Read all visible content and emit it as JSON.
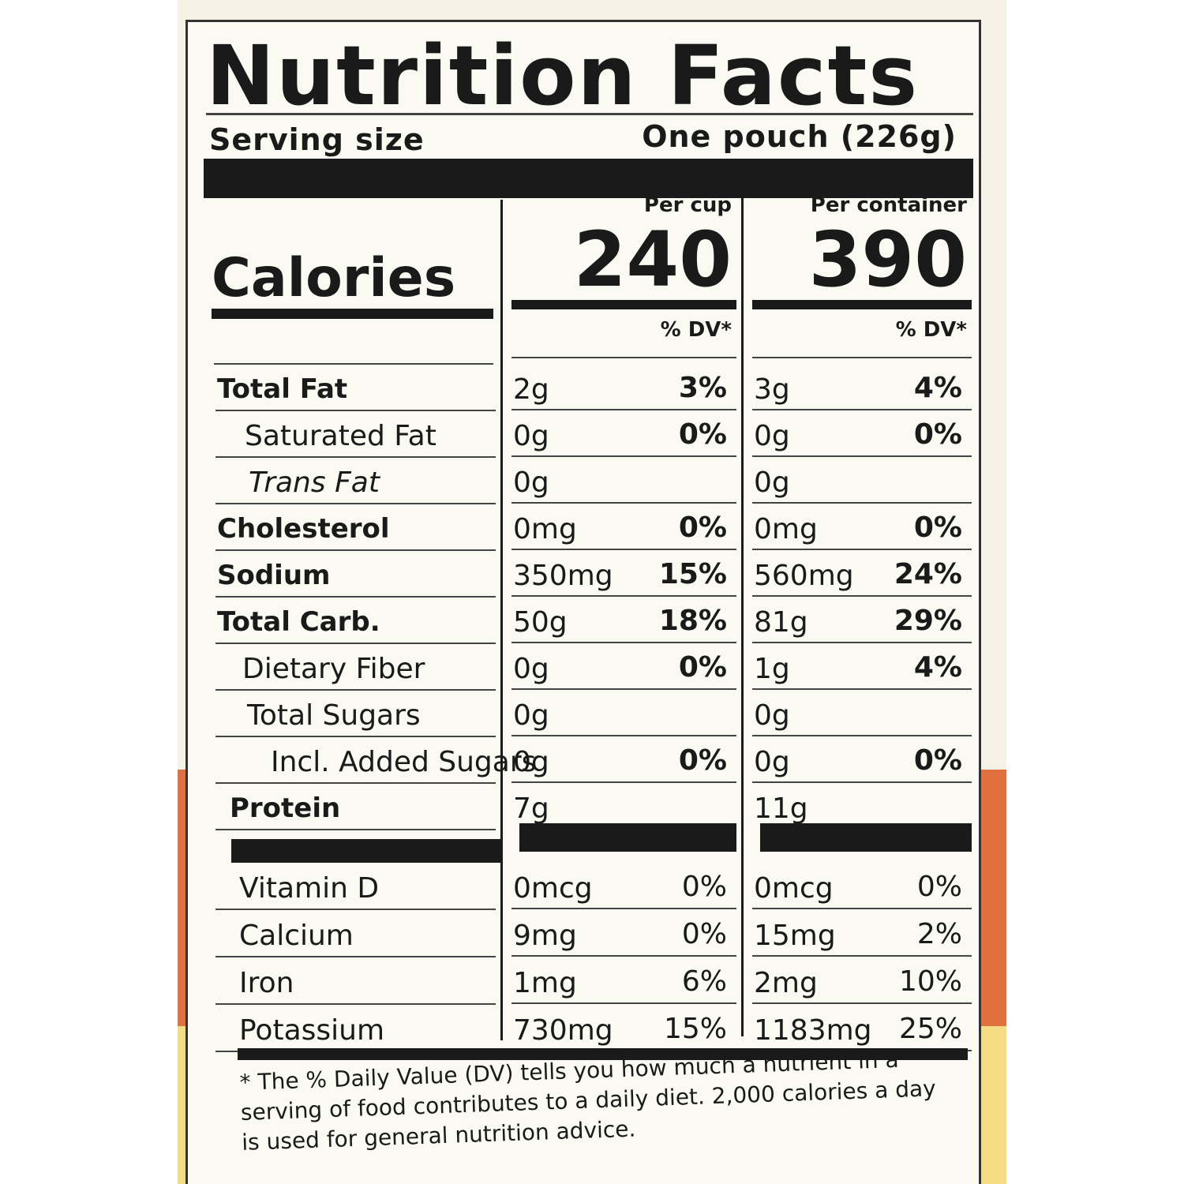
{
  "header": {
    "title": "Nutrition Facts",
    "serving_label": "Serving size",
    "serving_value": "One pouch (226g)"
  },
  "calories": {
    "label": "Calories",
    "columns": [
      {
        "heading": "Per cup",
        "value": "240",
        "dv_heading": "% DV*"
      },
      {
        "heading": "Per container",
        "value": "390",
        "dv_heading": "% DV*"
      }
    ]
  },
  "nutrients": [
    {
      "name": "Total Fat",
      "per_cup": {
        "amount": "2g",
        "dv": "3%"
      },
      "per_container": {
        "amount": "3g",
        "dv": "4%"
      }
    },
    {
      "name": "Saturated Fat",
      "per_cup": {
        "amount": "0g",
        "dv": "0%"
      },
      "per_container": {
        "amount": "0g",
        "dv": "0%"
      }
    },
    {
      "name": "Trans Fat",
      "per_cup": {
        "amount": "0g"
      },
      "per_container": {
        "amount": "0g"
      }
    },
    {
      "name": "Cholesterol",
      "per_cup": {
        "amount": "0mg",
        "dv": "0%"
      },
      "per_container": {
        "amount": "0mg",
        "dv": "0%"
      }
    },
    {
      "name": "Sodium",
      "per_cup": {
        "amount": "350mg",
        "dv": "15%"
      },
      "per_container": {
        "amount": "560mg",
        "dv": "24%"
      }
    },
    {
      "name": "Total Carb.",
      "per_cup": {
        "amount": "50g",
        "dv": "18%"
      },
      "per_container": {
        "amount": "81g",
        "dv": "29%"
      }
    },
    {
      "name": "Dietary Fiber",
      "per_cup": {
        "amount": "0g",
        "dv": "0%"
      },
      "per_container": {
        "amount": "1g",
        "dv": "4%"
      }
    },
    {
      "name": "Total Sugars",
      "per_cup": {
        "amount": "0g"
      },
      "per_container": {
        "amount": "0g"
      }
    },
    {
      "name": "Incl. Added Sugars",
      "per_cup": {
        "amount": "0g",
        "dv": "0%"
      },
      "per_container": {
        "amount": "0g",
        "dv": "0%"
      }
    },
    {
      "name": "Protein",
      "per_cup": {
        "amount": "7g"
      },
      "per_container": {
        "amount": "11g"
      }
    }
  ],
  "vitamins": [
    {
      "name": "Vitamin D",
      "per_cup": {
        "amount": "0mcg",
        "dv": "0%"
      },
      "per_container": {
        "amount": "0mcg",
        "dv": "0%"
      }
    },
    {
      "name": "Calcium",
      "per_cup": {
        "amount": "9mg",
        "dv": "0%"
      },
      "per_container": {
        "amount": "15mg",
        "dv": "2%"
      }
    },
    {
      "name": "Iron",
      "per_cup": {
        "amount": "1mg",
        "dv": "6%"
      },
      "per_container": {
        "amount": "2mg",
        "dv": "10%"
      }
    },
    {
      "name": "Potassium",
      "per_cup": {
        "amount": "730mg",
        "dv": "15%"
      },
      "per_container": {
        "amount": "1183mg",
        "dv": "25%"
      }
    }
  ],
  "footnote": "* The % Daily Value (DV) tells you how much a nutrient in a serving of food contributes to a daily diet. 2,000 calories a day is used for general nutrition advice."
}
